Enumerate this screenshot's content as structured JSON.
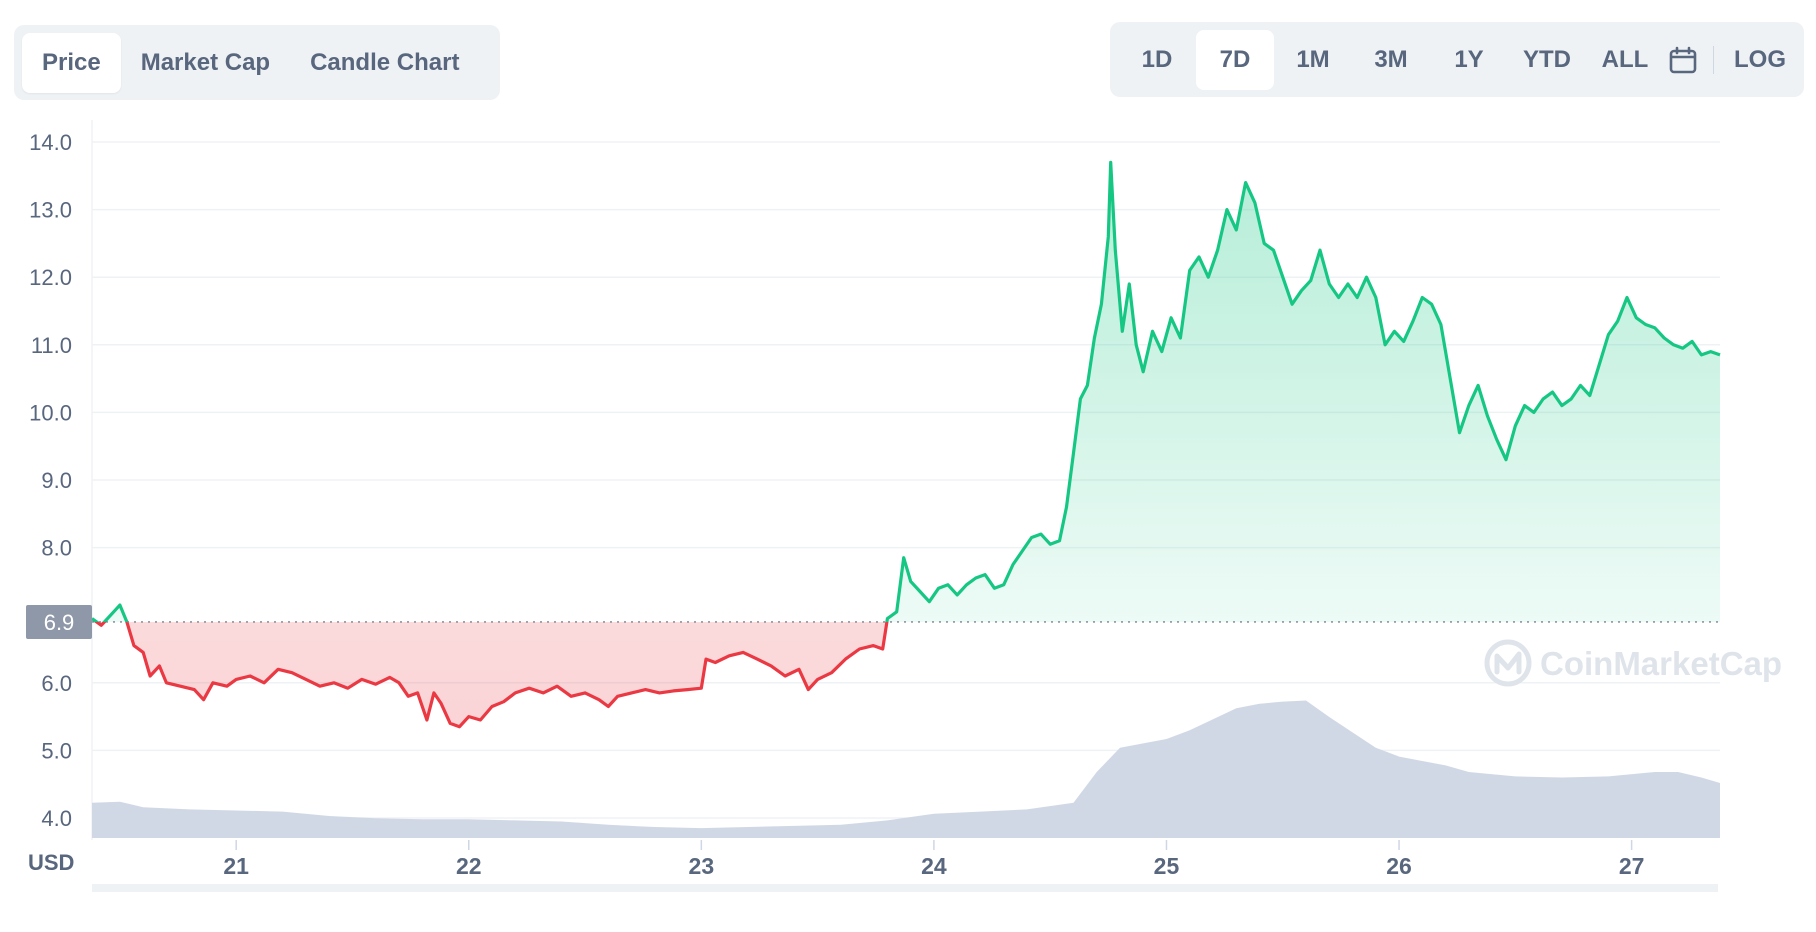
{
  "tabs": [
    {
      "label": "Price",
      "active": true
    },
    {
      "label": "Market Cap",
      "active": false
    },
    {
      "label": "Candle Chart",
      "active": false
    }
  ],
  "ranges": [
    {
      "label": "1D",
      "active": false
    },
    {
      "label": "7D",
      "active": true
    },
    {
      "label": "1M",
      "active": false
    },
    {
      "label": "3M",
      "active": false
    },
    {
      "label": "1Y",
      "active": false
    },
    {
      "label": "YTD",
      "active": false
    },
    {
      "label": "ALL",
      "active": false
    }
  ],
  "log_label": "LOG",
  "watermark": "CoinMarketCap",
  "colors": {
    "up": "#16c784",
    "down": "#ea3943",
    "volume": "#cfd6e4",
    "grid": "#eff2f5",
    "text": "#58667e",
    "baseline_badge": "#8f98a8"
  },
  "chart_data": {
    "type": "line",
    "currency_label": "USD",
    "baseline": 6.9,
    "baseline_label": "6.9",
    "y_ticks": [
      "14.0",
      "13.0",
      "12.0",
      "11.0",
      "10.0",
      "9.0",
      "8.0",
      "6.0",
      "5.0",
      "4.0"
    ],
    "x_ticks": [
      "21",
      "22",
      "23",
      "24",
      "25",
      "26",
      "27"
    ],
    "x_tick_values": [
      21,
      22,
      23,
      24,
      25,
      26,
      27
    ],
    "xlim": [
      20.38,
      27.38
    ],
    "ylim": [
      3.7,
      14.3
    ],
    "price_series": [
      [
        20.38,
        6.95
      ],
      [
        20.42,
        6.85
      ],
      [
        20.46,
        7.0
      ],
      [
        20.5,
        7.15
      ],
      [
        20.53,
        6.9
      ],
      [
        20.56,
        6.55
      ],
      [
        20.6,
        6.45
      ],
      [
        20.63,
        6.1
      ],
      [
        20.67,
        6.25
      ],
      [
        20.7,
        6.0
      ],
      [
        20.76,
        5.95
      ],
      [
        20.82,
        5.9
      ],
      [
        20.86,
        5.75
      ],
      [
        20.9,
        6.0
      ],
      [
        20.96,
        5.95
      ],
      [
        21.0,
        6.05
      ],
      [
        21.06,
        6.1
      ],
      [
        21.12,
        6.0
      ],
      [
        21.18,
        6.2
      ],
      [
        21.24,
        6.15
      ],
      [
        21.3,
        6.05
      ],
      [
        21.36,
        5.95
      ],
      [
        21.42,
        6.0
      ],
      [
        21.48,
        5.92
      ],
      [
        21.54,
        6.05
      ],
      [
        21.6,
        5.98
      ],
      [
        21.66,
        6.08
      ],
      [
        21.7,
        6.0
      ],
      [
        21.74,
        5.8
      ],
      [
        21.78,
        5.85
      ],
      [
        21.82,
        5.45
      ],
      [
        21.85,
        5.85
      ],
      [
        21.88,
        5.7
      ],
      [
        21.92,
        5.4
      ],
      [
        21.96,
        5.35
      ],
      [
        22.0,
        5.5
      ],
      [
        22.05,
        5.45
      ],
      [
        22.1,
        5.65
      ],
      [
        22.15,
        5.72
      ],
      [
        22.2,
        5.85
      ],
      [
        22.26,
        5.92
      ],
      [
        22.32,
        5.85
      ],
      [
        22.38,
        5.95
      ],
      [
        22.44,
        5.8
      ],
      [
        22.5,
        5.85
      ],
      [
        22.56,
        5.75
      ],
      [
        22.6,
        5.65
      ],
      [
        22.64,
        5.8
      ],
      [
        22.7,
        5.85
      ],
      [
        22.76,
        5.9
      ],
      [
        22.82,
        5.85
      ],
      [
        22.88,
        5.88
      ],
      [
        22.94,
        5.9
      ],
      [
        23.0,
        5.92
      ],
      [
        23.02,
        6.35
      ],
      [
        23.06,
        6.3
      ],
      [
        23.12,
        6.4
      ],
      [
        23.18,
        6.45
      ],
      [
        23.24,
        6.35
      ],
      [
        23.3,
        6.25
      ],
      [
        23.36,
        6.1
      ],
      [
        23.42,
        6.2
      ],
      [
        23.46,
        5.9
      ],
      [
        23.5,
        6.05
      ],
      [
        23.56,
        6.15
      ],
      [
        23.62,
        6.35
      ],
      [
        23.68,
        6.5
      ],
      [
        23.74,
        6.55
      ],
      [
        23.78,
        6.5
      ],
      [
        23.8,
        6.95
      ],
      [
        23.84,
        7.05
      ],
      [
        23.87,
        7.85
      ],
      [
        23.9,
        7.5
      ],
      [
        23.94,
        7.35
      ],
      [
        23.98,
        7.2
      ],
      [
        24.02,
        7.4
      ],
      [
        24.06,
        7.45
      ],
      [
        24.1,
        7.3
      ],
      [
        24.14,
        7.45
      ],
      [
        24.18,
        7.55
      ],
      [
        24.22,
        7.6
      ],
      [
        24.26,
        7.4
      ],
      [
        24.3,
        7.45
      ],
      [
        24.34,
        7.75
      ],
      [
        24.38,
        7.95
      ],
      [
        24.42,
        8.15
      ],
      [
        24.46,
        8.2
      ],
      [
        24.5,
        8.05
      ],
      [
        24.54,
        8.1
      ],
      [
        24.57,
        8.6
      ],
      [
        24.6,
        9.4
      ],
      [
        24.63,
        10.2
      ],
      [
        24.66,
        10.4
      ],
      [
        24.69,
        11.1
      ],
      [
        24.72,
        11.6
      ],
      [
        24.75,
        12.6
      ],
      [
        24.76,
        13.7
      ],
      [
        24.78,
        12.4
      ],
      [
        24.81,
        11.2
      ],
      [
        24.84,
        11.9
      ],
      [
        24.87,
        11.0
      ],
      [
        24.9,
        10.6
      ],
      [
        24.94,
        11.2
      ],
      [
        24.98,
        10.9
      ],
      [
        25.02,
        11.4
      ],
      [
        25.06,
        11.1
      ],
      [
        25.1,
        12.1
      ],
      [
        25.14,
        12.3
      ],
      [
        25.18,
        12.0
      ],
      [
        25.22,
        12.4
      ],
      [
        25.26,
        13.0
      ],
      [
        25.3,
        12.7
      ],
      [
        25.34,
        13.4
      ],
      [
        25.38,
        13.1
      ],
      [
        25.42,
        12.5
      ],
      [
        25.46,
        12.4
      ],
      [
        25.5,
        12.0
      ],
      [
        25.54,
        11.6
      ],
      [
        25.58,
        11.8
      ],
      [
        25.62,
        11.95
      ],
      [
        25.66,
        12.4
      ],
      [
        25.7,
        11.9
      ],
      [
        25.74,
        11.7
      ],
      [
        25.78,
        11.9
      ],
      [
        25.82,
        11.7
      ],
      [
        25.86,
        12.0
      ],
      [
        25.9,
        11.7
      ],
      [
        25.94,
        11.0
      ],
      [
        25.98,
        11.2
      ],
      [
        26.02,
        11.05
      ],
      [
        26.06,
        11.35
      ],
      [
        26.1,
        11.7
      ],
      [
        26.14,
        11.6
      ],
      [
        26.18,
        11.3
      ],
      [
        26.22,
        10.5
      ],
      [
        26.26,
        9.7
      ],
      [
        26.3,
        10.1
      ],
      [
        26.34,
        10.4
      ],
      [
        26.38,
        9.95
      ],
      [
        26.42,
        9.6
      ],
      [
        26.46,
        9.3
      ],
      [
        26.5,
        9.8
      ],
      [
        26.54,
        10.1
      ],
      [
        26.58,
        10.0
      ],
      [
        26.62,
        10.2
      ],
      [
        26.66,
        10.3
      ],
      [
        26.7,
        10.1
      ],
      [
        26.74,
        10.2
      ],
      [
        26.78,
        10.4
      ],
      [
        26.82,
        10.25
      ],
      [
        26.86,
        10.7
      ],
      [
        26.9,
        11.15
      ],
      [
        26.94,
        11.35
      ],
      [
        26.98,
        11.7
      ],
      [
        27.02,
        11.4
      ],
      [
        27.06,
        11.3
      ],
      [
        27.1,
        11.25
      ],
      [
        27.14,
        11.1
      ],
      [
        27.18,
        11.0
      ],
      [
        27.22,
        10.95
      ],
      [
        27.26,
        11.05
      ],
      [
        27.3,
        10.85
      ],
      [
        27.34,
        10.9
      ],
      [
        27.38,
        10.85
      ]
    ],
    "volume_series": [
      [
        20.38,
        0.32
      ],
      [
        20.5,
        0.33
      ],
      [
        20.6,
        0.28
      ],
      [
        20.8,
        0.26
      ],
      [
        21.0,
        0.25
      ],
      [
        21.2,
        0.24
      ],
      [
        21.4,
        0.2
      ],
      [
        21.6,
        0.18
      ],
      [
        21.8,
        0.17
      ],
      [
        22.0,
        0.17
      ],
      [
        22.2,
        0.16
      ],
      [
        22.4,
        0.15
      ],
      [
        22.6,
        0.12
      ],
      [
        22.8,
        0.1
      ],
      [
        23.0,
        0.09
      ],
      [
        23.2,
        0.1
      ],
      [
        23.4,
        0.11
      ],
      [
        23.6,
        0.12
      ],
      [
        23.8,
        0.16
      ],
      [
        24.0,
        0.22
      ],
      [
        24.2,
        0.24
      ],
      [
        24.4,
        0.26
      ],
      [
        24.6,
        0.32
      ],
      [
        24.7,
        0.6
      ],
      [
        24.8,
        0.82
      ],
      [
        24.9,
        0.86
      ],
      [
        25.0,
        0.9
      ],
      [
        25.1,
        0.98
      ],
      [
        25.2,
        1.08
      ],
      [
        25.3,
        1.18
      ],
      [
        25.4,
        1.22
      ],
      [
        25.5,
        1.24
      ],
      [
        25.6,
        1.25
      ],
      [
        25.7,
        1.1
      ],
      [
        25.8,
        0.96
      ],
      [
        25.9,
        0.82
      ],
      [
        26.0,
        0.74
      ],
      [
        26.1,
        0.7
      ],
      [
        26.2,
        0.66
      ],
      [
        26.3,
        0.6
      ],
      [
        26.5,
        0.56
      ],
      [
        26.7,
        0.55
      ],
      [
        26.9,
        0.56
      ],
      [
        27.1,
        0.6
      ],
      [
        27.2,
        0.6
      ],
      [
        27.3,
        0.55
      ],
      [
        27.38,
        0.5
      ]
    ]
  }
}
